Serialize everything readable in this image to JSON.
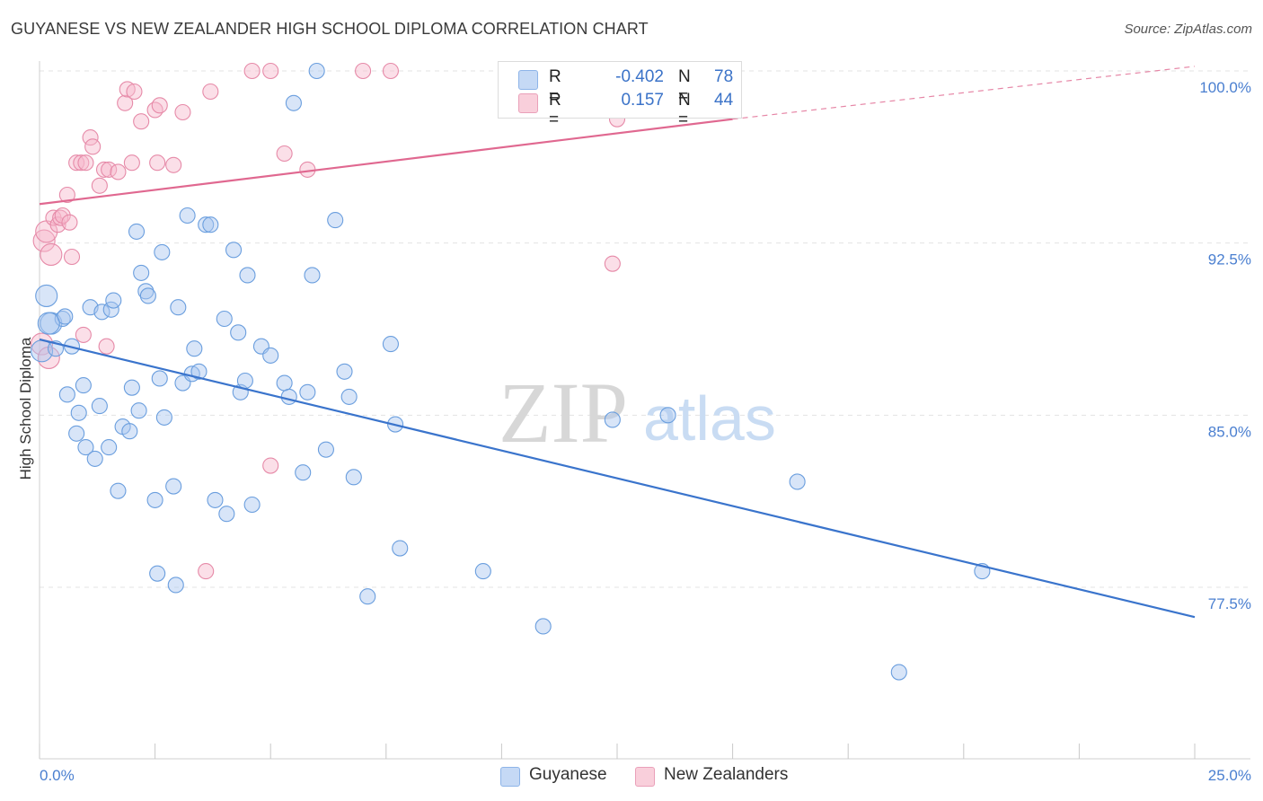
{
  "header": {
    "title": "GUYANESE VS NEW ZEALANDER HIGH SCHOOL DIPLOMA CORRELATION CHART",
    "source": "Source: ZipAtlas.com"
  },
  "legend": {
    "rows": [
      {
        "r_label": "R =",
        "r_value": "-0.402",
        "n_label": "N =",
        "n_value": "78",
        "color": "#a9c6ef"
      },
      {
        "r_label": "R =",
        "r_value": "0.157",
        "n_label": "N =",
        "n_value": "44",
        "color": "#f6b8cb"
      }
    ],
    "series_names": [
      "Guyanese",
      "New Zealanders"
    ]
  },
  "watermark": {
    "left": "ZIP",
    "right": "atlas"
  },
  "colors": {
    "blue_fill": "#a9c6ef",
    "blue_stroke": "#6a9ede",
    "blue_line": "#3a74cc",
    "pink_fill": "#f6b8cb",
    "pink_stroke": "#e68aa8",
    "pink_line": "#e06890",
    "grid": "#e3e3e3",
    "tick_text": "#4a7fd0"
  },
  "chart_data": {
    "type": "scatter",
    "title": "GUYANESE VS NEW ZEALANDER HIGH SCHOOL DIPLOMA CORRELATION CHART",
    "xlabel": "",
    "ylabel": "High School Diploma",
    "xlim": [
      0,
      25
    ],
    "ylim": [
      70.5,
      101.5
    ],
    "x_tick_labels": [
      "0.0%",
      "25.0%"
    ],
    "y_ticks": [
      77.5,
      85.0,
      92.5,
      100.0
    ],
    "y_tick_labels": [
      "77.5%",
      "85.0%",
      "92.5%",
      "100.0%"
    ],
    "grid": true,
    "legend_position": "top-center",
    "series": [
      {
        "name": "Guyanese",
        "color": "#a9c6ef",
        "trend": {
          "x": [
            0.0,
            25.0
          ],
          "y": [
            88.3,
            76.2
          ],
          "style": "solid"
        },
        "points": [
          [
            0.05,
            87.8
          ],
          [
            0.15,
            90.2
          ],
          [
            0.25,
            89.0
          ],
          [
            0.35,
            87.9
          ],
          [
            0.5,
            89.2
          ],
          [
            0.55,
            89.3
          ],
          [
            0.6,
            85.9
          ],
          [
            0.7,
            88.0
          ],
          [
            0.8,
            84.2
          ],
          [
            0.85,
            85.1
          ],
          [
            0.95,
            86.3
          ],
          [
            1.0,
            83.6
          ],
          [
            1.1,
            89.7
          ],
          [
            1.2,
            83.1
          ],
          [
            1.3,
            85.4
          ],
          [
            1.35,
            89.5
          ],
          [
            1.5,
            83.6
          ],
          [
            1.55,
            89.6
          ],
          [
            1.6,
            90.0
          ],
          [
            1.7,
            81.7
          ],
          [
            1.8,
            84.5
          ],
          [
            1.95,
            84.3
          ],
          [
            2.0,
            86.2
          ],
          [
            2.1,
            93.0
          ],
          [
            2.15,
            85.2
          ],
          [
            2.2,
            91.2
          ],
          [
            2.3,
            90.4
          ],
          [
            2.35,
            90.2
          ],
          [
            2.5,
            81.3
          ],
          [
            2.55,
            78.1
          ],
          [
            2.6,
            86.6
          ],
          [
            2.65,
            92.1
          ],
          [
            2.7,
            84.9
          ],
          [
            2.9,
            81.9
          ],
          [
            2.95,
            77.6
          ],
          [
            3.0,
            89.7
          ],
          [
            3.1,
            86.4
          ],
          [
            3.2,
            93.7
          ],
          [
            3.3,
            86.8
          ],
          [
            3.35,
            87.9
          ],
          [
            3.45,
            86.9
          ],
          [
            3.6,
            93.3
          ],
          [
            3.7,
            93.3
          ],
          [
            3.8,
            81.3
          ],
          [
            4.0,
            89.2
          ],
          [
            4.05,
            80.7
          ],
          [
            4.2,
            92.2
          ],
          [
            4.3,
            88.6
          ],
          [
            4.35,
            86.0
          ],
          [
            4.45,
            86.5
          ],
          [
            4.5,
            91.1
          ],
          [
            4.6,
            81.1
          ],
          [
            4.8,
            88.0
          ],
          [
            5.0,
            87.6
          ],
          [
            5.3,
            86.4
          ],
          [
            5.4,
            85.8
          ],
          [
            5.5,
            98.6
          ],
          [
            5.7,
            82.5
          ],
          [
            5.8,
            86.0
          ],
          [
            5.9,
            91.1
          ],
          [
            6.0,
            100.0
          ],
          [
            6.2,
            83.5
          ],
          [
            6.4,
            93.5
          ],
          [
            6.6,
            86.9
          ],
          [
            6.7,
            85.8
          ],
          [
            6.8,
            82.3
          ],
          [
            7.1,
            77.1
          ],
          [
            7.6,
            88.1
          ],
          [
            7.7,
            84.6
          ],
          [
            7.8,
            79.2
          ],
          [
            9.6,
            78.2
          ],
          [
            10.9,
            75.8
          ],
          [
            12.4,
            84.8
          ],
          [
            13.6,
            85.0
          ],
          [
            16.4,
            82.1
          ],
          [
            18.6,
            73.8
          ],
          [
            20.4,
            78.2
          ],
          [
            0.2,
            89.0
          ]
        ]
      },
      {
        "name": "New Zealanders",
        "color": "#f6b8cb",
        "trend": {
          "x": [
            0.0,
            15.0
          ],
          "y": [
            94.2,
            97.9
          ],
          "style": "solid",
          "extension": {
            "x": [
              15.0,
              25.0
            ],
            "y": [
              97.9,
              100.2
            ],
            "style": "dashed"
          }
        },
        "points": [
          [
            0.05,
            88.1
          ],
          [
            0.1,
            92.6
          ],
          [
            0.15,
            93.0
          ],
          [
            0.25,
            92.0
          ],
          [
            0.3,
            93.6
          ],
          [
            0.4,
            93.3
          ],
          [
            0.45,
            93.6
          ],
          [
            0.5,
            93.7
          ],
          [
            0.6,
            94.6
          ],
          [
            0.65,
            93.4
          ],
          [
            0.7,
            91.9
          ],
          [
            0.8,
            96.0
          ],
          [
            0.9,
            96.0
          ],
          [
            0.95,
            88.5
          ],
          [
            1.0,
            96.0
          ],
          [
            1.1,
            97.1
          ],
          [
            1.15,
            96.7
          ],
          [
            1.3,
            95.0
          ],
          [
            1.4,
            95.7
          ],
          [
            1.45,
            88.0
          ],
          [
            1.5,
            95.7
          ],
          [
            1.7,
            95.6
          ],
          [
            1.85,
            98.6
          ],
          [
            1.9,
            99.2
          ],
          [
            2.0,
            96.0
          ],
          [
            2.05,
            99.1
          ],
          [
            2.2,
            97.8
          ],
          [
            2.5,
            98.3
          ],
          [
            2.55,
            96.0
          ],
          [
            2.6,
            98.5
          ],
          [
            2.9,
            95.9
          ],
          [
            3.1,
            98.2
          ],
          [
            3.6,
            78.2
          ],
          [
            3.7,
            99.1
          ],
          [
            4.6,
            100.0
          ],
          [
            5.0,
            100.0
          ],
          [
            5.0,
            82.8
          ],
          [
            5.3,
            96.4
          ],
          [
            5.8,
            95.7
          ],
          [
            7.0,
            100.0
          ],
          [
            7.6,
            100.0
          ],
          [
            12.4,
            91.6
          ],
          [
            12.5,
            97.9
          ],
          [
            0.2,
            87.5
          ]
        ]
      }
    ]
  }
}
